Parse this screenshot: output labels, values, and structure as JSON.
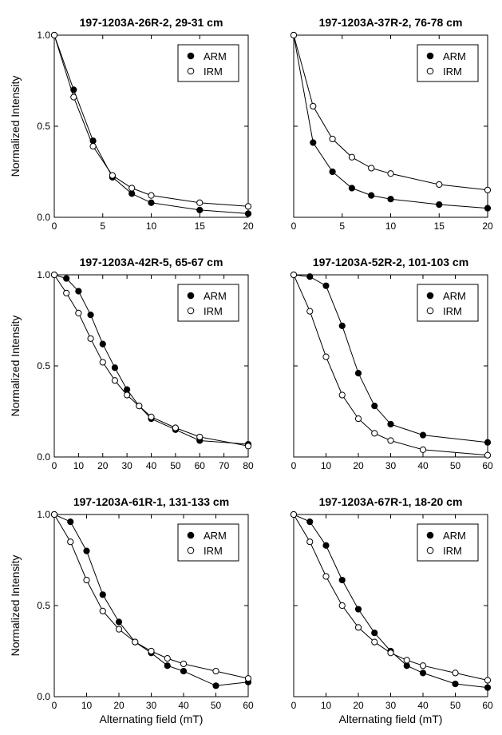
{
  "chart_data": [
    {
      "type": "line",
      "title": "197-1203A-26R-2, 29-31 cm",
      "xlabel": "",
      "ylabel": "Normalized Intensity",
      "xlim": [
        0,
        20
      ],
      "ylim": [
        0,
        1
      ],
      "xticks": [
        "0",
        "5",
        "10",
        "15",
        "20"
      ],
      "yticks": [
        "0.0",
        "0.5",
        "1.0"
      ],
      "legend": "top-right",
      "series": [
        {
          "name": "ARM",
          "marker": "filled-circle",
          "x": [
            0,
            2,
            4,
            6,
            8,
            10,
            15,
            20
          ],
          "y": [
            1.0,
            0.7,
            0.42,
            0.22,
            0.13,
            0.08,
            0.04,
            0.02
          ]
        },
        {
          "name": "IRM",
          "marker": "open-circle",
          "x": [
            0,
            2,
            4,
            6,
            8,
            10,
            15,
            20
          ],
          "y": [
            1.0,
            0.66,
            0.39,
            0.23,
            0.16,
            0.12,
            0.08,
            0.06
          ]
        }
      ]
    },
    {
      "type": "line",
      "title": "197-1203A-37R-2, 76-78 cm",
      "xlabel": "",
      "ylabel": "",
      "xlim": [
        0,
        20
      ],
      "ylim": [
        0,
        1
      ],
      "xticks": [
        "0",
        "5",
        "10",
        "15",
        "20"
      ],
      "yticks": [],
      "legend": "top-right",
      "series": [
        {
          "name": "ARM",
          "marker": "filled-circle",
          "x": [
            0,
            2,
            4,
            6,
            8,
            10,
            15,
            20
          ],
          "y": [
            1.0,
            0.41,
            0.25,
            0.16,
            0.12,
            0.1,
            0.07,
            0.05
          ]
        },
        {
          "name": "IRM",
          "marker": "open-circle",
          "x": [
            0,
            2,
            4,
            6,
            8,
            10,
            15,
            20
          ],
          "y": [
            1.0,
            0.61,
            0.43,
            0.33,
            0.27,
            0.24,
            0.18,
            0.15
          ]
        }
      ]
    },
    {
      "type": "line",
      "title": "197-1203A-42R-5, 65-67 cm",
      "xlabel": "",
      "ylabel": "Normalized Intensity",
      "xlim": [
        0,
        80
      ],
      "ylim": [
        0,
        1
      ],
      "xticks": [
        "0",
        "10",
        "20",
        "30",
        "40",
        "50",
        "60",
        "70",
        "80"
      ],
      "yticks": [
        "0.0",
        "0.5",
        "1.0"
      ],
      "legend": "top-right",
      "series": [
        {
          "name": "ARM",
          "marker": "filled-circle",
          "x": [
            0,
            5,
            10,
            15,
            20,
            25,
            30,
            35,
            40,
            50,
            60,
            80
          ],
          "y": [
            1.0,
            0.98,
            0.91,
            0.78,
            0.62,
            0.49,
            0.37,
            0.28,
            0.21,
            0.15,
            0.09,
            0.07
          ]
        },
        {
          "name": "IRM",
          "marker": "open-circle",
          "x": [
            0,
            5,
            10,
            15,
            20,
            25,
            30,
            35,
            40,
            50,
            60,
            80
          ],
          "y": [
            1.0,
            0.9,
            0.79,
            0.65,
            0.52,
            0.42,
            0.34,
            0.28,
            0.22,
            0.16,
            0.11,
            0.06
          ]
        }
      ]
    },
    {
      "type": "line",
      "title": "197-1203A-52R-2, 101-103 cm",
      "xlabel": "",
      "ylabel": "",
      "xlim": [
        0,
        60
      ],
      "ylim": [
        0,
        1
      ],
      "xticks": [
        "0",
        "10",
        "20",
        "30",
        "40",
        "50",
        "60"
      ],
      "yticks": [],
      "legend": "top-right",
      "series": [
        {
          "name": "ARM",
          "marker": "filled-circle",
          "x": [
            0,
            5,
            10,
            15,
            20,
            25,
            30,
            40,
            60
          ],
          "y": [
            1.0,
            0.99,
            0.94,
            0.72,
            0.46,
            0.28,
            0.18,
            0.12,
            0.08
          ]
        },
        {
          "name": "IRM",
          "marker": "open-circle",
          "x": [
            0,
            5,
            10,
            15,
            20,
            25,
            30,
            40,
            60
          ],
          "y": [
            1.0,
            0.8,
            0.55,
            0.34,
            0.21,
            0.13,
            0.09,
            0.04,
            0.01
          ]
        }
      ]
    },
    {
      "type": "line",
      "title": "197-1203A-61R-1, 131-133 cm",
      "xlabel": "Alternating field (mT)",
      "ylabel": "Normalized Intensity",
      "xlim": [
        0,
        60
      ],
      "ylim": [
        0,
        1
      ],
      "xticks": [
        "0",
        "10",
        "20",
        "30",
        "40",
        "50",
        "60"
      ],
      "yticks": [
        "0.0",
        "0.5",
        "1.0"
      ],
      "legend": "top-right",
      "series": [
        {
          "name": "ARM",
          "marker": "filled-circle",
          "x": [
            0,
            5,
            10,
            15,
            20,
            25,
            30,
            35,
            40,
            50,
            60
          ],
          "y": [
            1.0,
            0.96,
            0.8,
            0.56,
            0.41,
            0.3,
            0.24,
            0.17,
            0.14,
            0.06,
            0.08
          ]
        },
        {
          "name": "IRM",
          "marker": "open-circle",
          "x": [
            0,
            5,
            10,
            15,
            20,
            25,
            30,
            35,
            40,
            50,
            60
          ],
          "y": [
            1.0,
            0.85,
            0.64,
            0.47,
            0.37,
            0.3,
            0.25,
            0.21,
            0.18,
            0.14,
            0.1
          ]
        }
      ]
    },
    {
      "type": "line",
      "title": "197-1203A-67R-1, 18-20 cm",
      "xlabel": "Alternating field (mT)",
      "ylabel": "",
      "xlim": [
        0,
        60
      ],
      "ylim": [
        0,
        1
      ],
      "xticks": [
        "0",
        "10",
        "20",
        "30",
        "40",
        "50",
        "60"
      ],
      "yticks": [],
      "legend": "top-right",
      "series": [
        {
          "name": "ARM",
          "marker": "filled-circle",
          "x": [
            0,
            5,
            10,
            15,
            20,
            25,
            30,
            35,
            40,
            50,
            60
          ],
          "y": [
            1.0,
            0.96,
            0.83,
            0.64,
            0.48,
            0.35,
            0.25,
            0.17,
            0.13,
            0.07,
            0.05
          ]
        },
        {
          "name": "IRM",
          "marker": "open-circle",
          "x": [
            0,
            5,
            10,
            15,
            20,
            25,
            30,
            35,
            40,
            50,
            60
          ],
          "y": [
            1.0,
            0.85,
            0.66,
            0.5,
            0.38,
            0.3,
            0.24,
            0.2,
            0.17,
            0.13,
            0.09
          ]
        }
      ]
    }
  ]
}
